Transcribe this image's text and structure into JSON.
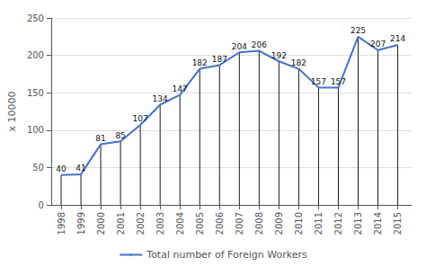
{
  "chart_data": {
    "type": "line",
    "x": [
      1998,
      1999,
      2000,
      2001,
      2002,
      2003,
      2004,
      2005,
      2006,
      2007,
      2008,
      2009,
      2010,
      2011,
      2012,
      2013,
      2014,
      2015
    ],
    "series": [
      {
        "name": "Total number of Foreign Workers",
        "color": "#4472C4",
        "values": [
          40,
          41,
          81,
          85,
          107,
          134,
          147,
          182,
          187,
          204,
          206,
          192,
          182,
          157,
          157,
          225,
          207,
          214
        ]
      }
    ],
    "ylabel": "x 10000",
    "xlim": [
      1997.5,
      2015.7
    ],
    "xticks": [
      1998,
      1999,
      2000,
      2001,
      2002,
      2003,
      2004,
      2005,
      2006,
      2007,
      2008,
      2009,
      2010,
      2011,
      2012,
      2013,
      2014,
      2015
    ],
    "ylim": [
      0,
      250
    ],
    "yticks": [
      0,
      50,
      100,
      150,
      200,
      250
    ],
    "grid": true,
    "legend": "bottom",
    "data_labels": true
  }
}
